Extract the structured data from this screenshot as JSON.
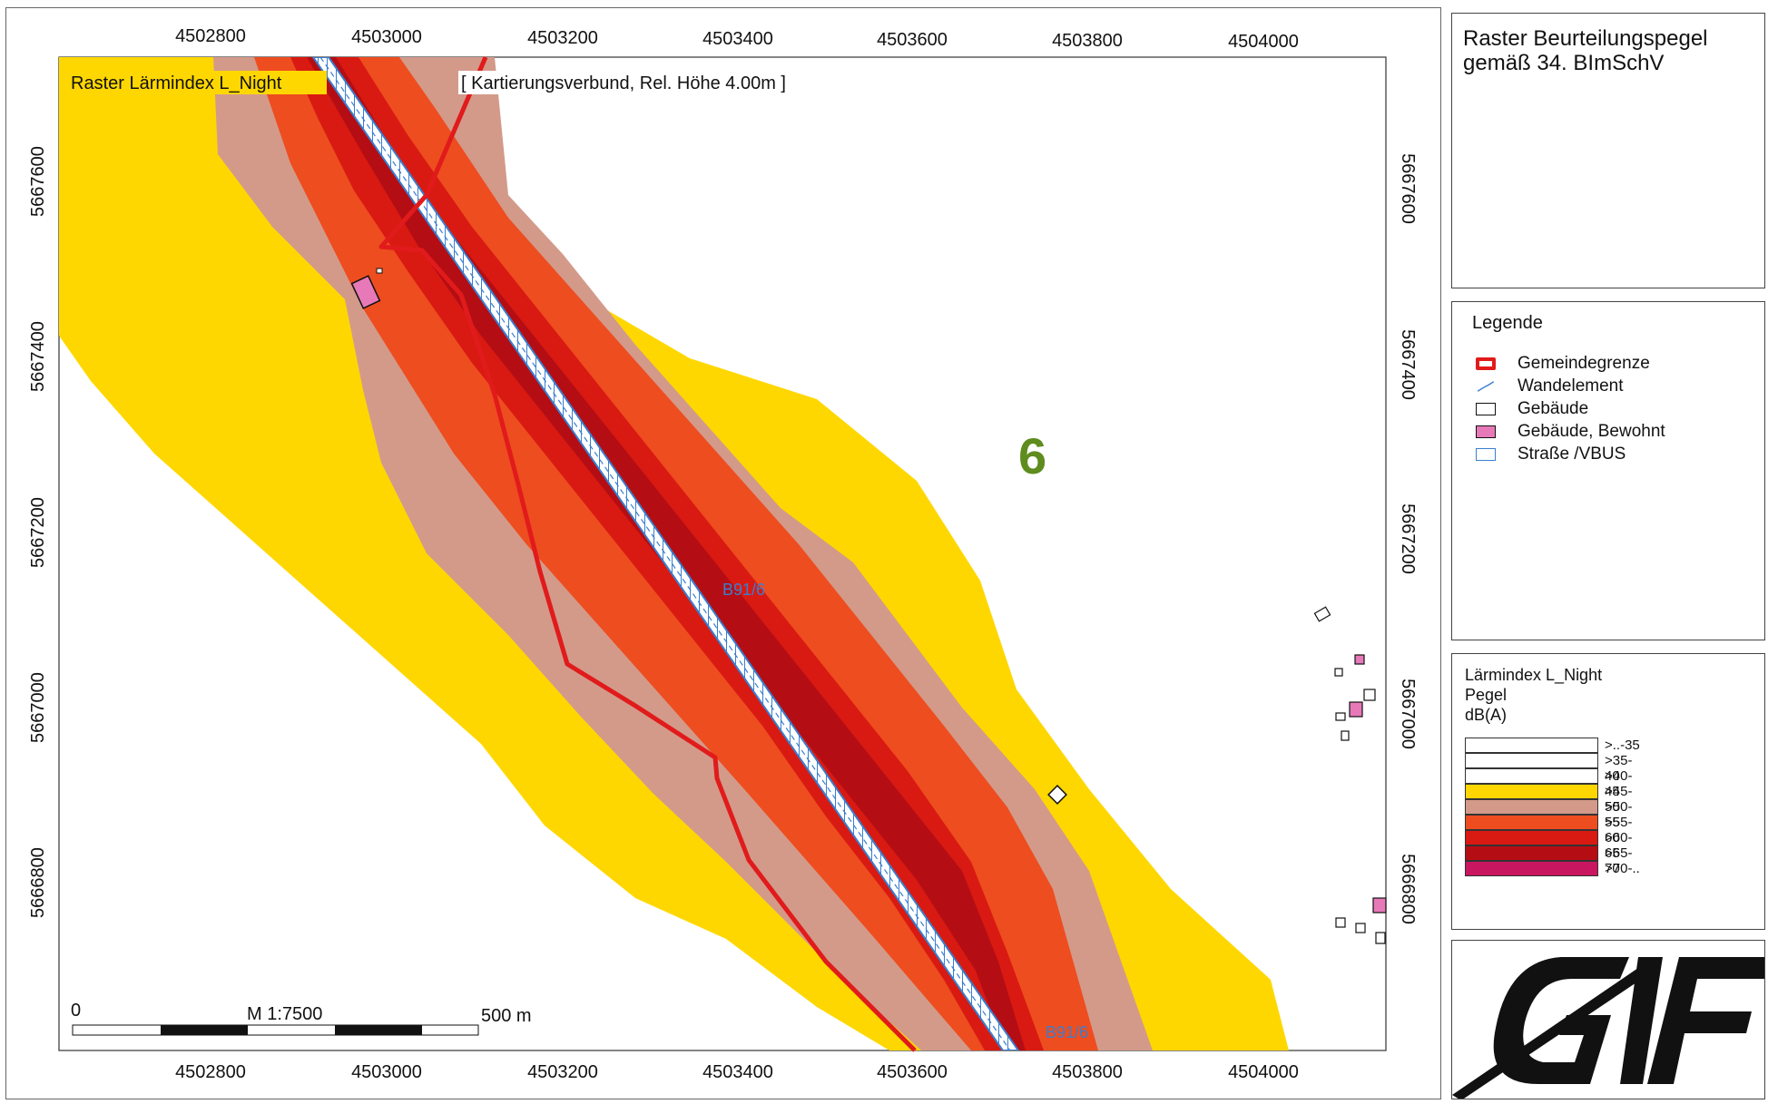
{
  "map": {
    "title": "Raster Lärmindex L_Night",
    "subtitle": "[ Kartierungsverbund, Rel. Höhe  4.00m ]",
    "tile_number": "6",
    "road_label_top": "B91/6",
    "road_label_bottom": "B91/6",
    "x_ticks_top": [
      "4502800",
      "4503000",
      "4503200",
      "4503400",
      "4503600",
      "4503800",
      "4504000"
    ],
    "x_ticks_bottom": [
      "4502800",
      "4503000",
      "4503200",
      "4503400",
      "4503600",
      "4503800",
      "4504000"
    ],
    "y_ticks_left": [
      "5667600",
      "5667400",
      "5667200",
      "5667000",
      "5666800"
    ],
    "y_ticks_right": [
      "5667600",
      "5667400",
      "5667200",
      "5667000",
      "5666800"
    ],
    "scale_bar": {
      "start": "0",
      "scale": "M 1:7500",
      "end": "500 m"
    }
  },
  "title_panel": {
    "line1": "Raster Beurteilungspegel",
    "line2": "gemäß 34. BImSchV"
  },
  "legend": {
    "heading": "Legende",
    "items": [
      {
        "label": "Gemeindegrenze",
        "icon": "boundary-icon"
      },
      {
        "label": "Wandelement",
        "icon": "wall-element-icon"
      },
      {
        "label": "Gebäude",
        "icon": "building-icon"
      },
      {
        "label": "Gebäude, Bewohnt",
        "icon": "inhabited-building-icon"
      },
      {
        "label": "Straße /VBUS",
        "icon": "road-icon"
      }
    ]
  },
  "levels": {
    "title1": "Lärmindex L_Night",
    "title2": "Pegel",
    "title3": "dB(A)",
    "classes": [
      {
        "label": ">..-35",
        "color": "#ffffff"
      },
      {
        "label": ">35-40",
        "color": "#ffffff"
      },
      {
        "label": ">40-45",
        "color": "#ffffff"
      },
      {
        "label": ">45-50",
        "color": "#ffd700"
      },
      {
        "label": ">50-55",
        "color": "#d39a8a"
      },
      {
        "label": ">55-60",
        "color": "#ee4d1f"
      },
      {
        "label": ">60-65",
        "color": "#d91a12"
      },
      {
        "label": ">65-70",
        "color": "#b50d14"
      },
      {
        "label": ">70-..",
        "color": "#c81660"
      }
    ]
  },
  "colors": {
    "boundary": "#e11b1b",
    "road": "#3a7ecf",
    "tile_number": "#5e8c1e",
    "inhabited": "#e879b8"
  }
}
